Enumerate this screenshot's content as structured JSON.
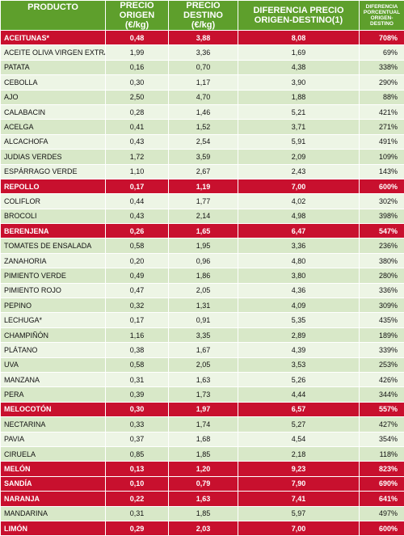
{
  "header": {
    "product": "PRODUCTO",
    "origin_price_l1": "PRECIO",
    "origin_price_l2": "ORIGEN (€/kg)",
    "dest_price_l1": "PRECIO",
    "dest_price_l2": "DESTINO (€/kg)",
    "diff_l1": "DIFERENCIA PRECIO",
    "diff_l2": "ORIGEN-DESTINO(1)",
    "pct_l1": "DIFERENCIA",
    "pct_l2": "PORCENTUAL",
    "pct_l3": "ORIGEN-DESTINO"
  },
  "colors": {
    "header": "#5e9f2c",
    "highlight": "#c8102e",
    "row_a": "#d8e8c8",
    "row_b": "#edf5e5"
  },
  "rows": [
    {
      "product": "ACEITUNAS*",
      "origin": "0,48",
      "dest": "3,88",
      "diff": "8,08",
      "pct": "708%",
      "highlight": true
    },
    {
      "product": "ACEITE OLIVA VIRGEN EXTRA*",
      "origin": "1,99",
      "dest": "3,36",
      "diff": "1,69",
      "pct": "69%",
      "highlight": false
    },
    {
      "product": "PATATA",
      "origin": "0,16",
      "dest": "0,70",
      "diff": "4,38",
      "pct": "338%",
      "highlight": false
    },
    {
      "product": "CEBOLLA",
      "origin": "0,30",
      "dest": "1,17",
      "diff": "3,90",
      "pct": "290%",
      "highlight": false
    },
    {
      "product": "AJO",
      "origin": "2,50",
      "dest": "4,70",
      "diff": "1,88",
      "pct": "88%",
      "highlight": false
    },
    {
      "product": "CALABACIN",
      "origin": "0,28",
      "dest": "1,46",
      "diff": "5,21",
      "pct": "421%",
      "highlight": false
    },
    {
      "product": "ACELGA",
      "origin": "0,41",
      "dest": "1,52",
      "diff": "3,71",
      "pct": "271%",
      "highlight": false
    },
    {
      "product": "ALCACHOFA",
      "origin": "0,43",
      "dest": "2,54",
      "diff": "5,91",
      "pct": "491%",
      "highlight": false
    },
    {
      "product": "JUDIAS VERDES",
      "origin": "1,72",
      "dest": "3,59",
      "diff": "2,09",
      "pct": "109%",
      "highlight": false
    },
    {
      "product": "ESPÁRRAGO VERDE",
      "origin": "1,10",
      "dest": "2,67",
      "diff": "2,43",
      "pct": "143%",
      "highlight": false
    },
    {
      "product": "REPOLLO",
      "origin": "0,17",
      "dest": "1,19",
      "diff": "7,00",
      "pct": "600%",
      "highlight": true
    },
    {
      "product": "COLIFLOR",
      "origin": "0,44",
      "dest": "1,77",
      "diff": "4,02",
      "pct": "302%",
      "highlight": false
    },
    {
      "product": "BROCOLI",
      "origin": "0,43",
      "dest": "2,14",
      "diff": "4,98",
      "pct": "398%",
      "highlight": false
    },
    {
      "product": "BERENJENA",
      "origin": "0,26",
      "dest": "1,65",
      "diff": "6,47",
      "pct": "547%",
      "highlight": true
    },
    {
      "product": "TOMATES DE ENSALADA",
      "origin": "0,58",
      "dest": "1,95",
      "diff": "3,36",
      "pct": "236%",
      "highlight": false
    },
    {
      "product": "ZANAHORIA",
      "origin": "0,20",
      "dest": "0,96",
      "diff": "4,80",
      "pct": "380%",
      "highlight": false
    },
    {
      "product": "PIMIENTO VERDE",
      "origin": "0,49",
      "dest": "1,86",
      "diff": "3,80",
      "pct": "280%",
      "highlight": false
    },
    {
      "product": "PIMIENTO ROJO",
      "origin": "0,47",
      "dest": "2,05",
      "diff": "4,36",
      "pct": "336%",
      "highlight": false
    },
    {
      "product": "PEPINO",
      "origin": "0,32",
      "dest": "1,31",
      "diff": "4,09",
      "pct": "309%",
      "highlight": false
    },
    {
      "product": "LECHUGA*",
      "origin": "0,17",
      "dest": "0,91",
      "diff": "5,35",
      "pct": "435%",
      "highlight": false
    },
    {
      "product": "CHAMPIÑÓN",
      "origin": "1,16",
      "dest": "3,35",
      "diff": "2,89",
      "pct": "189%",
      "highlight": false
    },
    {
      "product": "PLÁTANO",
      "origin": "0,38",
      "dest": "1,67",
      "diff": "4,39",
      "pct": "339%",
      "highlight": false
    },
    {
      "product": "UVA",
      "origin": "0,58",
      "dest": "2,05",
      "diff": "3,53",
      "pct": "253%",
      "highlight": false
    },
    {
      "product": "MANZANA",
      "origin": "0,31",
      "dest": "1,63",
      "diff": "5,26",
      "pct": "426%",
      "highlight": false
    },
    {
      "product": "PERA",
      "origin": "0,39",
      "dest": "1,73",
      "diff": "4,44",
      "pct": "344%",
      "highlight": false
    },
    {
      "product": "MELOCOTÓN",
      "origin": "0,30",
      "dest": "1,97",
      "diff": "6,57",
      "pct": "557%",
      "highlight": true
    },
    {
      "product": "NECTARINA",
      "origin": "0,33",
      "dest": "1,74",
      "diff": "5,27",
      "pct": "427%",
      "highlight": false
    },
    {
      "product": "PAVIA",
      "origin": "0,37",
      "dest": "1,68",
      "diff": "4,54",
      "pct": "354%",
      "highlight": false
    },
    {
      "product": "CIRUELA",
      "origin": "0,85",
      "dest": "1,85",
      "diff": "2,18",
      "pct": "118%",
      "highlight": false
    },
    {
      "product": "MELÓN",
      "origin": "0,13",
      "dest": "1,20",
      "diff": "9,23",
      "pct": "823%",
      "highlight": true
    },
    {
      "product": "SANDÍA",
      "origin": "0,10",
      "dest": "0,79",
      "diff": "7,90",
      "pct": "690%",
      "highlight": true
    },
    {
      "product": "NARANJA",
      "origin": "0,22",
      "dest": "1,63",
      "diff": "7,41",
      "pct": "641%",
      "highlight": true
    },
    {
      "product": "MANDARINA",
      "origin": "0,31",
      "dest": "1,85",
      "diff": "5,97",
      "pct": "497%",
      "highlight": false
    },
    {
      "product": "LIMÓN",
      "origin": "0,29",
      "dest": "2,03",
      "diff": "7,00",
      "pct": "600%",
      "highlight": true
    }
  ]
}
